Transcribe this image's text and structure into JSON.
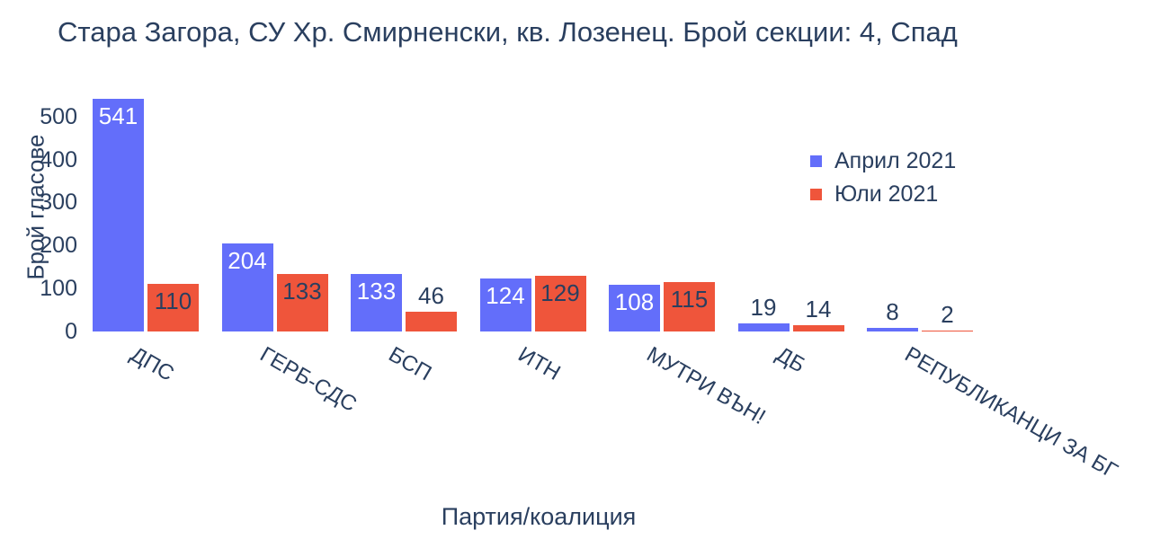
{
  "chart_data": {
    "type": "bar",
    "title": "Стара Загора, СУ Хр. Смирненски, кв. Лозенец. Брой секции: 4,  Спад",
    "xlabel": "Партия/коалиция",
    "ylabel": "Брой гласове",
    "categories": [
      "ДПС",
      "ГЕРБ-СДС",
      "БСП",
      "ИТН",
      "МУТРИ ВЪН!",
      "ДБ",
      "РЕПУБЛИКАНЦИ ЗА БГ"
    ],
    "series": [
      {
        "name": "Април 2021",
        "color": "#636EFA",
        "values": [
          541,
          204,
          133,
          124,
          108,
          19,
          8
        ]
      },
      {
        "name": "Юли 2021",
        "color": "#EF553B",
        "values": [
          110,
          133,
          46,
          129,
          115,
          14,
          2
        ]
      }
    ],
    "yticks": [
      0,
      100,
      200,
      300,
      400,
      500
    ],
    "ylim": [
      0,
      560
    ],
    "grid": false,
    "legend_position": "right",
    "bar_label_inside_color_blue": "#FFFFFF",
    "bar_label_color_dark": "#2A3F5F",
    "text_color": "#2A3F5F"
  }
}
